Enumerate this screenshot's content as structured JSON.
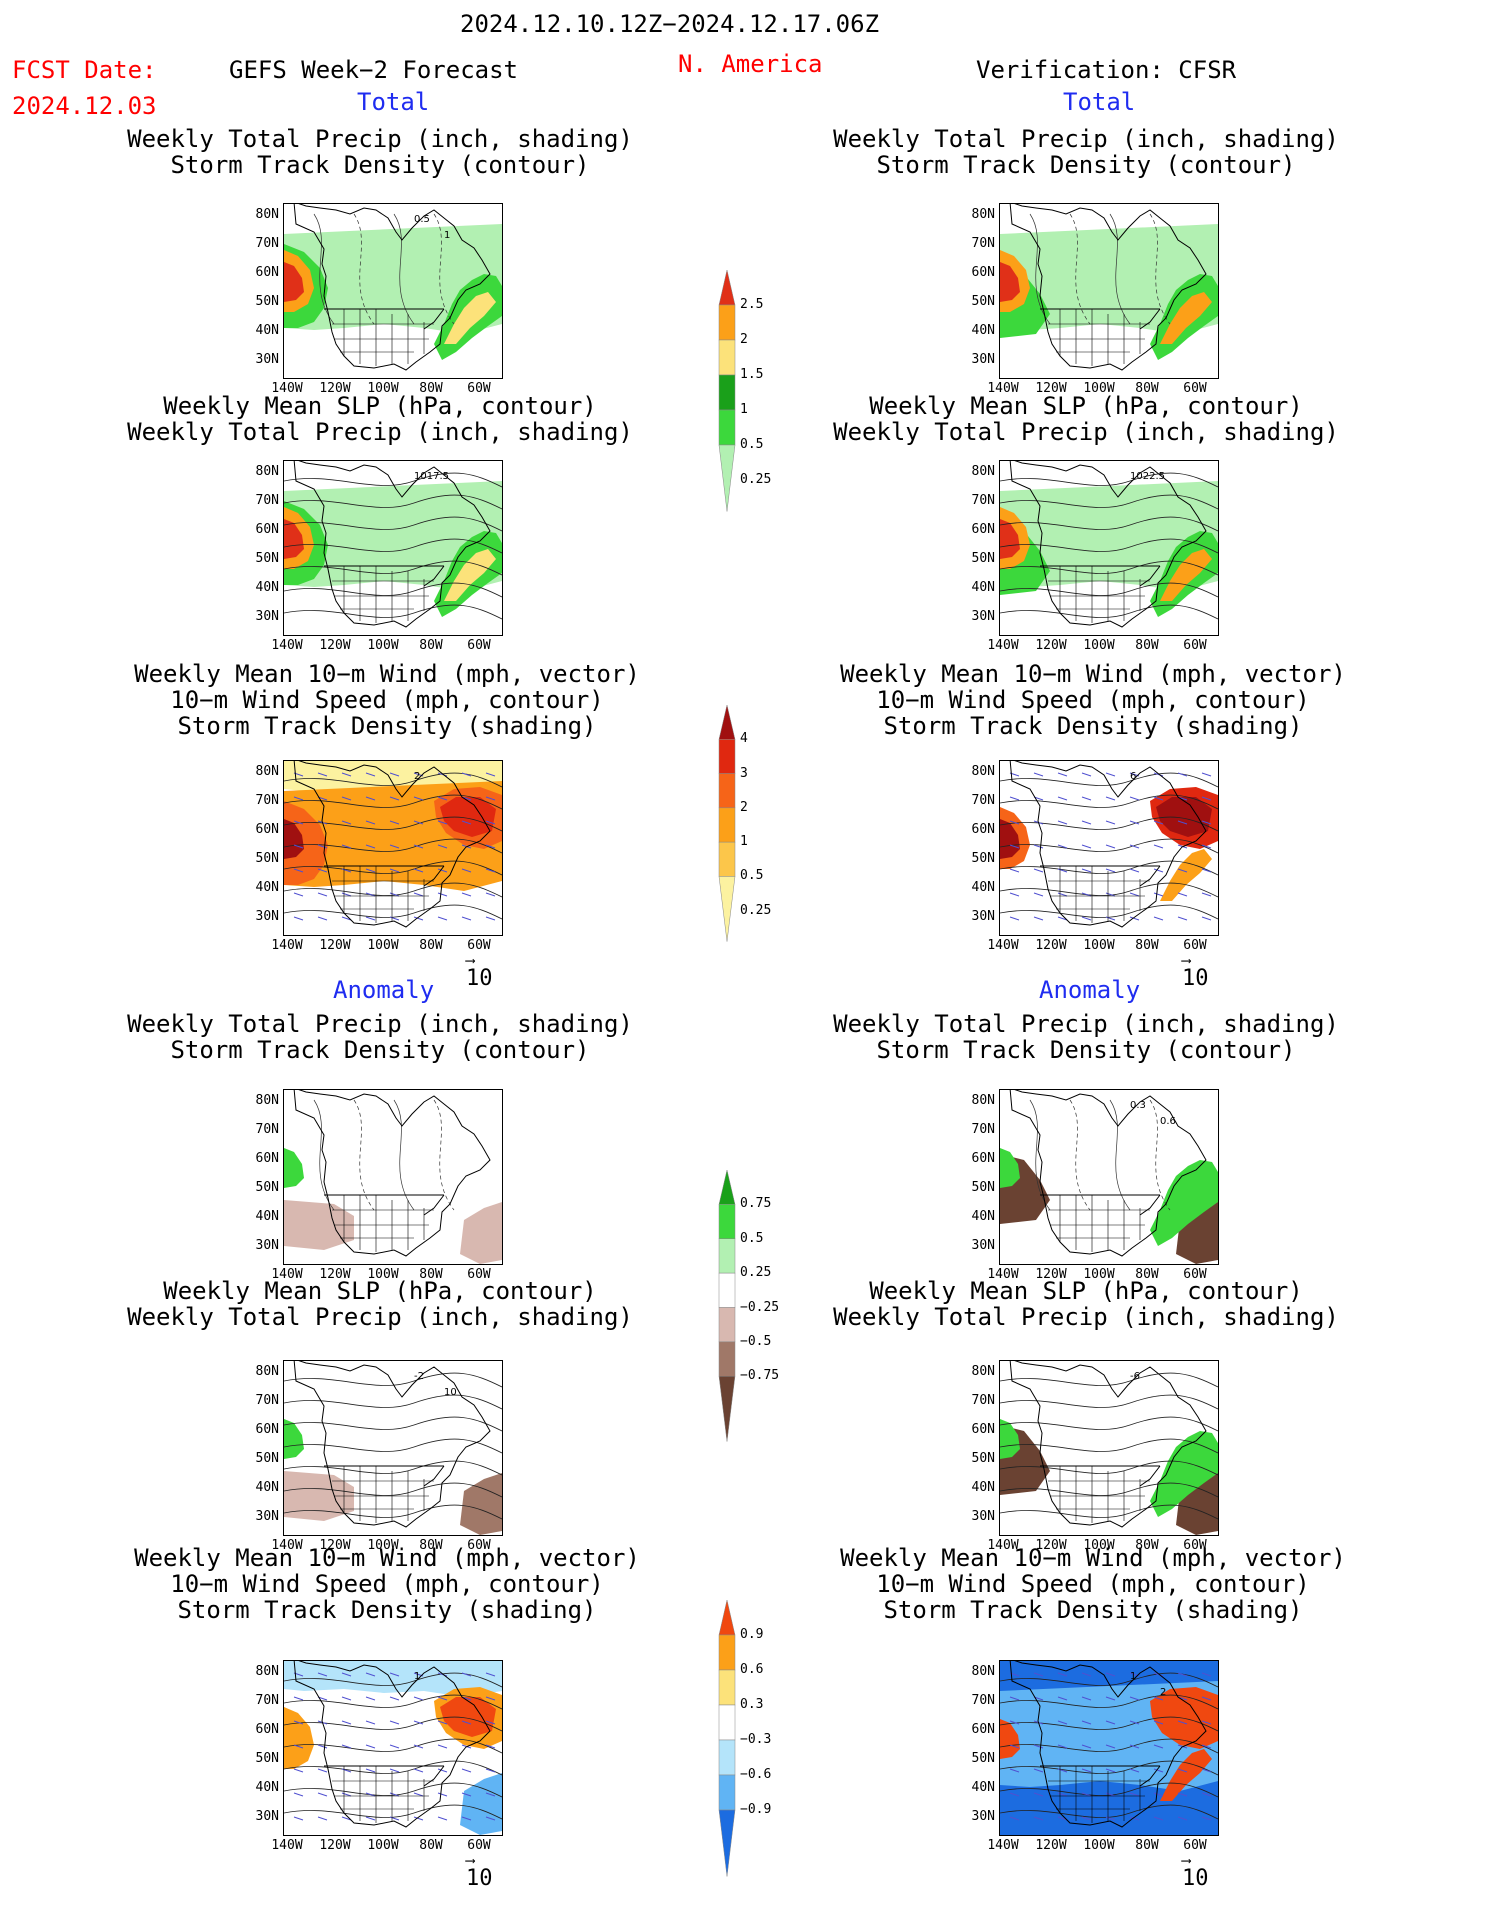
{
  "header": {
    "date_range": "2024.12.10.12Z−2024.12.17.06Z",
    "fcst_label": "FCST Date:",
    "fcst_date": "2024.12.03",
    "left_title": "GEFS Week−2 Forecast",
    "region": "N. America",
    "right_title": "Verification: CFSR"
  },
  "sections": {
    "total": "Total",
    "anomaly": "Anomaly"
  },
  "captions": {
    "precip_track": [
      "Weekly Total Precip (inch, shading)",
      "Storm Track Density (contour)"
    ],
    "slp_precip": [
      "Weekly Mean SLP (hPa, contour)",
      "Weekly Total Precip (inch, shading)"
    ],
    "wind_track": [
      "Weekly Mean 10−m Wind (mph, vector)",
      "10−m Wind Speed (mph, contour)",
      "Storm Track Density (shading)"
    ]
  },
  "axes": {
    "lat_labels": [
      "80N",
      "70N",
      "60N",
      "50N",
      "40N",
      "30N"
    ],
    "lon_labels": [
      "140W",
      "120W",
      "100W",
      "80W",
      "60W"
    ]
  },
  "vector_ref": "10",
  "map_annotations": {
    "f_total_precip": [
      "0.5",
      "1"
    ],
    "f_total_slp": [
      "1017.5"
    ],
    "o_total_slp": [
      "1022.5"
    ],
    "f_total_wind": [
      "2"
    ],
    "o_total_wind": [
      "6"
    ],
    "o_anom_precip": [
      "0.3",
      "0.6"
    ],
    "f_anom_slp": [
      "-2",
      "10"
    ],
    "o_anom_slp": [
      "-6"
    ],
    "f_anom_wind": [
      "1"
    ],
    "o_anom_wind": [
      "1",
      "2"
    ]
  },
  "colorbars": {
    "total_precip": {
      "labels": [
        "2.5",
        "2",
        "1.5",
        "1",
        "0.5",
        "0.25"
      ],
      "colors": [
        "#e03018",
        "#fca018",
        "#fce27a",
        "#1aa01a",
        "#3cd83c",
        "#b2f0b2"
      ]
    },
    "total_track": {
      "labels": [
        "4",
        "3",
        "2",
        "1",
        "0.5",
        "0.25"
      ],
      "colors": [
        "#a01010",
        "#e02810",
        "#f66418",
        "#fca018",
        "#fcc64a",
        "#fcf2a0"
      ]
    },
    "anom_precip": {
      "labels": [
        "0.75",
        "0.5",
        "0.25",
        "−0.25",
        "−0.5",
        "−0.75"
      ],
      "colors": [
        "#1aa01a",
        "#3cd83c",
        "#b2f0b2",
        "#ffffff",
        "#d8b8b0",
        "#a07868",
        "#6a4232"
      ]
    },
    "anom_track": {
      "labels": [
        "0.9",
        "0.6",
        "0.3",
        "−0.3",
        "−0.6",
        "−0.9"
      ],
      "colors": [
        "#f04810",
        "#fca018",
        "#fce27a",
        "#ffffff",
        "#b4e4fa",
        "#60b4f4",
        "#1c6ce0"
      ]
    }
  }
}
